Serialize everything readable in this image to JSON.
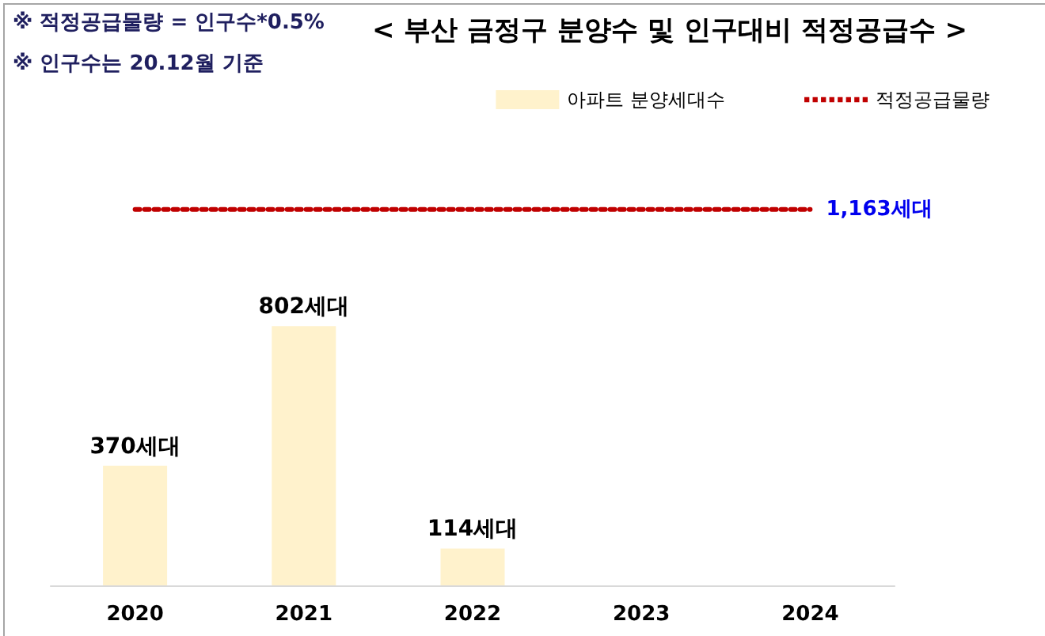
{
  "chart_data": {
    "type": "bar",
    "title": "< 부산 금정구 분양수 및 인구대비 적정공급수 >",
    "annotations": [
      "※ 적정공급물량 = 인구수*0.5%",
      "※ 인구수는 20.12월 기준"
    ],
    "categories": [
      "2020",
      "2021",
      "2022",
      "2023",
      "2024"
    ],
    "series": [
      {
        "name": "아파트 분양세대수",
        "color": "#fff2cc",
        "values": [
          370,
          802,
          114,
          null,
          null
        ],
        "value_labels": [
          "370세대",
          "802세대",
          "114세대",
          null,
          null
        ]
      },
      {
        "name": "적정공급물량",
        "type": "line",
        "line_style": "dotted",
        "color": "#c00000",
        "values": [
          1163,
          1163,
          1163,
          1163,
          1163
        ],
        "value_labels": [
          null,
          null,
          null,
          null,
          "1,163세대"
        ]
      }
    ],
    "legend": "top right"
  }
}
